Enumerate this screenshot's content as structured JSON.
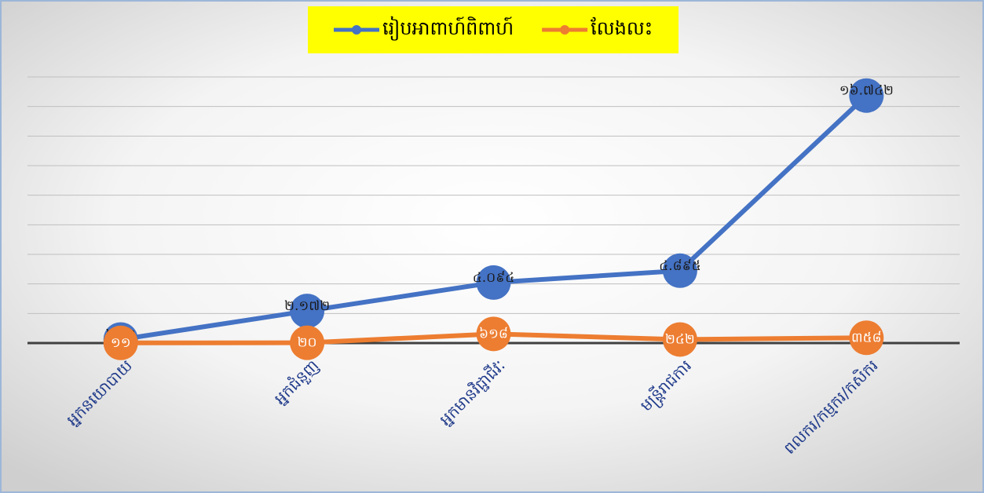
{
  "chart_data": {
    "type": "line",
    "categories": [
      "អ្នកនយោបាយ",
      "អ្នកជំនួញ",
      "អ្នកមានវិជ្ជាជីវៈ",
      "មន្ត្រីរាជការ",
      "ពលករ/កម្មករ/កសិករ"
    ],
    "series": [
      {
        "name": "រៀបអាពាហ៍ពិពាហ៍",
        "color": "#4472c4",
        "values": [
          242,
          2172,
          4094,
          4895,
          16742
        ],
        "value_labels": [
          "២៤២",
          "២.១៧២",
          "៤.០៩៤",
          "៤.៨៩៥",
          "១៦.៧៤២"
        ]
      },
      {
        "name": "លែងលះ",
        "color": "#ed7d31",
        "values": [
          11,
          20,
          618,
          242,
          358
        ],
        "value_labels": [
          "១១",
          "២០",
          "៦១៨",
          "២៤២",
          "៣៥៨"
        ]
      }
    ],
    "ylim": [
      0,
      18000
    ],
    "yticks": [
      0,
      2000,
      4000,
      6000,
      8000,
      10000,
      12000,
      14000,
      16000,
      18000
    ],
    "grid": true,
    "legend": "top"
  }
}
